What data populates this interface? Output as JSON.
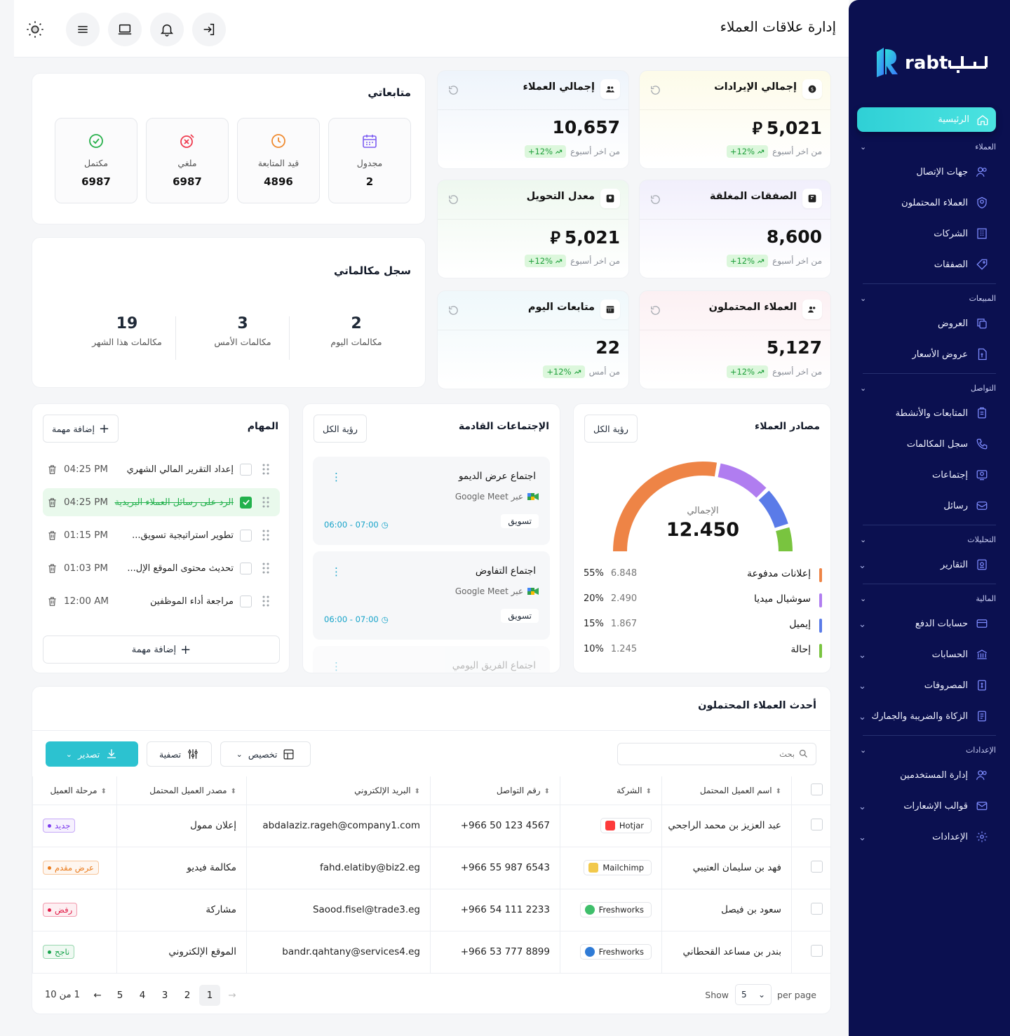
{
  "header": {
    "title": "إدارة علاقات العملاء"
  },
  "brand": {
    "name": "ربط",
    "latin": "rabt"
  },
  "sidebar": {
    "home": "الرئيسية",
    "sections": [
      {
        "label": "العملاء",
        "items": [
          "جهات الإتصال",
          "العملاء المحتملون",
          "الشركات",
          "الصفقات"
        ]
      },
      {
        "label": "المبيعات",
        "items": [
          "العروض",
          "عروض الأسعار"
        ]
      },
      {
        "label": "التواصل",
        "items": [
          "المتابعات والأنشطة",
          "سجل المكالمات",
          "إجتماعات",
          "رسائل"
        ]
      },
      {
        "label": "التحليلات",
        "items": [
          "التقارير"
        ]
      },
      {
        "label": "المالية",
        "items": [
          "حسابات الدفع",
          "الحسابات",
          "المصروفات",
          "الزكاة والضريبة والجمارك"
        ]
      },
      {
        "label": "الإعدادات",
        "items": [
          "إدارة المستخدمين",
          "قوالب الإشعارات",
          "الإعدادات"
        ]
      }
    ]
  },
  "follow": {
    "title": "متابعاتي",
    "stats": [
      {
        "label": "مجدول",
        "value": "2",
        "icon": "calendar-icon"
      },
      {
        "label": "قيد المتابعة",
        "value": "4896",
        "icon": "clock-icon"
      },
      {
        "label": "ملغي",
        "value": "6987",
        "icon": "cancel-icon"
      },
      {
        "label": "مكتمل",
        "value": "6987",
        "icon": "check-circle-icon"
      }
    ]
  },
  "calls": {
    "title": "سجل مكالماتي",
    "stats": [
      {
        "label": "مكالمات اليوم",
        "value": "2"
      },
      {
        "label": "مكالمات الأمس",
        "value": "3"
      },
      {
        "label": "مكالمات هذا الشهر",
        "value": "19"
      }
    ]
  },
  "kpis": [
    {
      "title": "إجمالي الإيرادات",
      "value": "5,021",
      "currency": true,
      "change": "+12%",
      "period": "من اخر أسبوع",
      "bg": "#fdfbe9"
    },
    {
      "title": "إجمالي العملاء",
      "value": "10,657",
      "currency": false,
      "change": "+12%",
      "period": "من اخر أسبوع",
      "bg": "#eef4fb"
    },
    {
      "title": "الصفقات المغلقة",
      "value": "8,600",
      "currency": false,
      "change": "+12%",
      "period": "من اخر أسبوع",
      "bg": "#f1effc"
    },
    {
      "title": "معدل التحويل",
      "value": "5,021",
      "currency": true,
      "change": "+12%",
      "period": "من اخر أسبوع",
      "bg": "#eef8ef"
    },
    {
      "title": "العملاء المحتملون",
      "value": "5,127",
      "currency": false,
      "change": "+12%",
      "period": "من اخر أسبوع",
      "bg": "#fcf0f3"
    },
    {
      "title": "متابعات اليوم",
      "value": "22",
      "currency": false,
      "change": "+12%",
      "period": "من أمس",
      "bg": "#eff8fb"
    }
  ],
  "tasks": {
    "title": "المهام",
    "add_top": "إضافة مهمة",
    "add_bottom": "إضافة مهمة",
    "items": [
      {
        "text": "إعداد التقرير المالي الشهري",
        "time": "04:25 PM",
        "done": false
      },
      {
        "text": "الرد على رسائل العملاء البريدية",
        "time": "04:25 PM",
        "done": true
      },
      {
        "text": "تطوير استراتيجية تسويق...",
        "time": "01:15 PM",
        "done": false
      },
      {
        "text": "تحديث محتوى الموقع الإل...",
        "time": "01:03 PM",
        "done": false
      },
      {
        "text": "مراجعة أداء الموظفين",
        "time": "12:00 AM",
        "done": false
      }
    ]
  },
  "meetings": {
    "title": "الإجتماعات القادمة",
    "view_all": "رؤية الكل",
    "items": [
      {
        "title": "اجتماع عرض الديمو",
        "via": "عبر Google Meet",
        "time": "06:00 - 07:00",
        "tag": "تسويق"
      },
      {
        "title": "اجتماع التفاوض",
        "via": "عبر Google Meet",
        "time": "06:00 - 07:00",
        "tag": "تسويق"
      },
      {
        "title": "اجتماع الفريق اليومي"
      }
    ]
  },
  "sources": {
    "title": "مصادر العملاء",
    "view_all": "رؤية الكل",
    "total_label": "الإجمالي",
    "total": "12.450"
  },
  "chart_data": {
    "type": "pie",
    "title": "مصادر العملاء",
    "categories": [
      "إعلانات مدفوعة",
      "سوشيال ميديا",
      "إيميل",
      "إحالة"
    ],
    "values": [
      6.848,
      2.49,
      1.867,
      1.245
    ],
    "percents": [
      "55%",
      "20%",
      "15%",
      "10%"
    ],
    "value_labels": [
      "6.848",
      "2.490",
      "1.867",
      "1.245"
    ],
    "colors": [
      "#ee8446",
      "#b07df0",
      "#5a7be8",
      "#79c43f"
    ]
  },
  "leads": {
    "title": "أحدث العملاء المحتملون",
    "search_placeholder": "بحث",
    "customize": "تخصيص",
    "filter": "تصفية",
    "export": "تصدير",
    "columns": [
      "اسم العميل المحتمل",
      "الشركة",
      "رقم التواصل",
      "البريد الإلكتروني",
      "مصدر العميل المحتمل",
      "مرحلة العميل"
    ],
    "rows": [
      {
        "name": "عبد العزيز بن محمد الراجحي",
        "company": "Hotjar",
        "company_color": "#fd3a3a",
        "phone": "+966 50 123 4567",
        "email": "abdalaziz.rageh@company1.com",
        "source": "إعلان ممول",
        "stage": "جديد",
        "stage_color": "#7c3aed"
      },
      {
        "name": "فهد بن سليمان العتيبي",
        "company": "Mailchimp",
        "company_color": "#f2c94c",
        "phone": "+966 55 987 6543",
        "email": "fahd.elatiby@biz2.eg",
        "source": "مكالمة فيديو",
        "stage": "عرض مقدم",
        "stage_color": "#ea7a1a"
      },
      {
        "name": "سعود بن فيصل",
        "company": "Freshworks",
        "company_color": "#3fbf6b",
        "phone": "+966 54 111 2233",
        "email": "Saood.fisel@trade3.eg",
        "source": "مشاركة",
        "stage": "رفض",
        "stage_color": "#e11d48"
      },
      {
        "name": "بندر بن مساعد القحطاني",
        "company": "Freshworks",
        "company_color": "#2f7bd6",
        "phone": "+966 53 777 8899",
        "email": "bandr.qahtany@services4.eg",
        "source": "الموقع الإلكتروني",
        "stage": "ناجح",
        "stage_color": "#16a34a"
      }
    ],
    "pagination": {
      "range": "1 من 10",
      "pages": [
        "1",
        "2",
        "3",
        "4",
        "5"
      ],
      "current": "1",
      "show": "Show",
      "per_page_value": "5",
      "per_page": "per page"
    }
  }
}
